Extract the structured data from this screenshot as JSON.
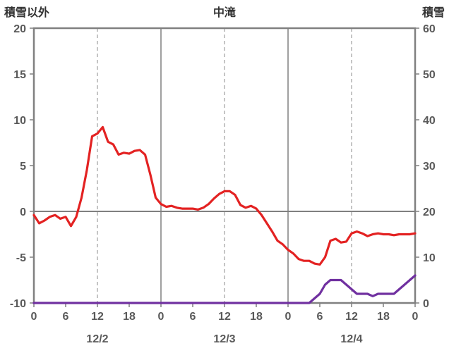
{
  "header": {
    "left_axis_title": "積雪以外",
    "title": "中滝",
    "right_axis_title": "積雪"
  },
  "colors": {
    "border": "#808080",
    "zero_line": "#808080",
    "day_line": "#808080",
    "dashed_grid": "#a6a6a6",
    "tick_text": "#595959",
    "title_text": "#333333",
    "temperature_line": "#e32222",
    "snow_line": "#7030a0"
  },
  "chart_data": {
    "type": "line",
    "title": "中滝",
    "x_unit": "hour",
    "x_range_hours": [
      0,
      72
    ],
    "x_axis": {
      "tick_hours": [
        0,
        6,
        12,
        18,
        24,
        30,
        36,
        42,
        48,
        54,
        60,
        66,
        72
      ],
      "tick_labels": [
        "0",
        "6",
        "12",
        "18",
        "0",
        "6",
        "12",
        "18",
        "0",
        "6",
        "12",
        "18",
        "0"
      ],
      "day_labels": [
        {
          "text": "12/2",
          "hour": 12
        },
        {
          "text": "12/3",
          "hour": 36
        },
        {
          "text": "12/4",
          "hour": 60
        }
      ]
    },
    "left_axis": {
      "title": "積雪以外",
      "min": -10,
      "max": 20,
      "ticks": [
        -10,
        -5,
        0,
        5,
        10,
        15,
        20
      ]
    },
    "right_axis": {
      "title": "積雪",
      "min": 0,
      "max": 60,
      "ticks": [
        0,
        10,
        20,
        30,
        40,
        50,
        60
      ]
    },
    "gridlines": {
      "vertical_solid_hours": [
        24,
        48
      ],
      "vertical_dashed_hours": [
        12,
        36,
        60
      ],
      "horizontal_zero_value": 0
    },
    "series": [
      {
        "name": "積雪以外",
        "axis": "left",
        "color": "#e32222",
        "values": [
          -0.4,
          -1.3,
          -1.0,
          -0.6,
          -0.4,
          -0.8,
          -0.6,
          -1.6,
          -0.6,
          1.5,
          4.5,
          8.2,
          8.5,
          9.2,
          7.6,
          7.3,
          6.2,
          6.4,
          6.3,
          6.6,
          6.7,
          6.2,
          4.0,
          1.5,
          0.8,
          0.5,
          0.6,
          0.4,
          0.3,
          0.3,
          0.3,
          0.2,
          0.4,
          0.8,
          1.4,
          1.9,
          2.2,
          2.2,
          1.8,
          0.7,
          0.4,
          0.6,
          0.3,
          -0.4,
          -1.3,
          -2.2,
          -3.2,
          -3.6,
          -4.2,
          -4.6,
          -5.2,
          -5.4,
          -5.4,
          -5.7,
          -5.8,
          -5.0,
          -3.2,
          -3.0,
          -3.4,
          -3.3,
          -2.4,
          -2.2,
          -2.4,
          -2.7,
          -2.5,
          -2.4,
          -2.5,
          -2.5,
          -2.6,
          -2.5,
          -2.5,
          -2.5,
          -2.4
        ]
      },
      {
        "name": "積雪",
        "axis": "right",
        "color": "#7030a0",
        "values": [
          0,
          0,
          0,
          0,
          0,
          0,
          0,
          0,
          0,
          0,
          0,
          0,
          0,
          0,
          0,
          0,
          0,
          0,
          0,
          0,
          0,
          0,
          0,
          0,
          0,
          0,
          0,
          0,
          0,
          0,
          0,
          0,
          0,
          0,
          0,
          0,
          0,
          0,
          0,
          0,
          0,
          0,
          0,
          0,
          0,
          0,
          0,
          0,
          0,
          0,
          0,
          0,
          0,
          1,
          2,
          4,
          5,
          5,
          5,
          4,
          3,
          2,
          2,
          2,
          1.5,
          2,
          2,
          2,
          2,
          3,
          4,
          5,
          6
        ]
      }
    ]
  }
}
